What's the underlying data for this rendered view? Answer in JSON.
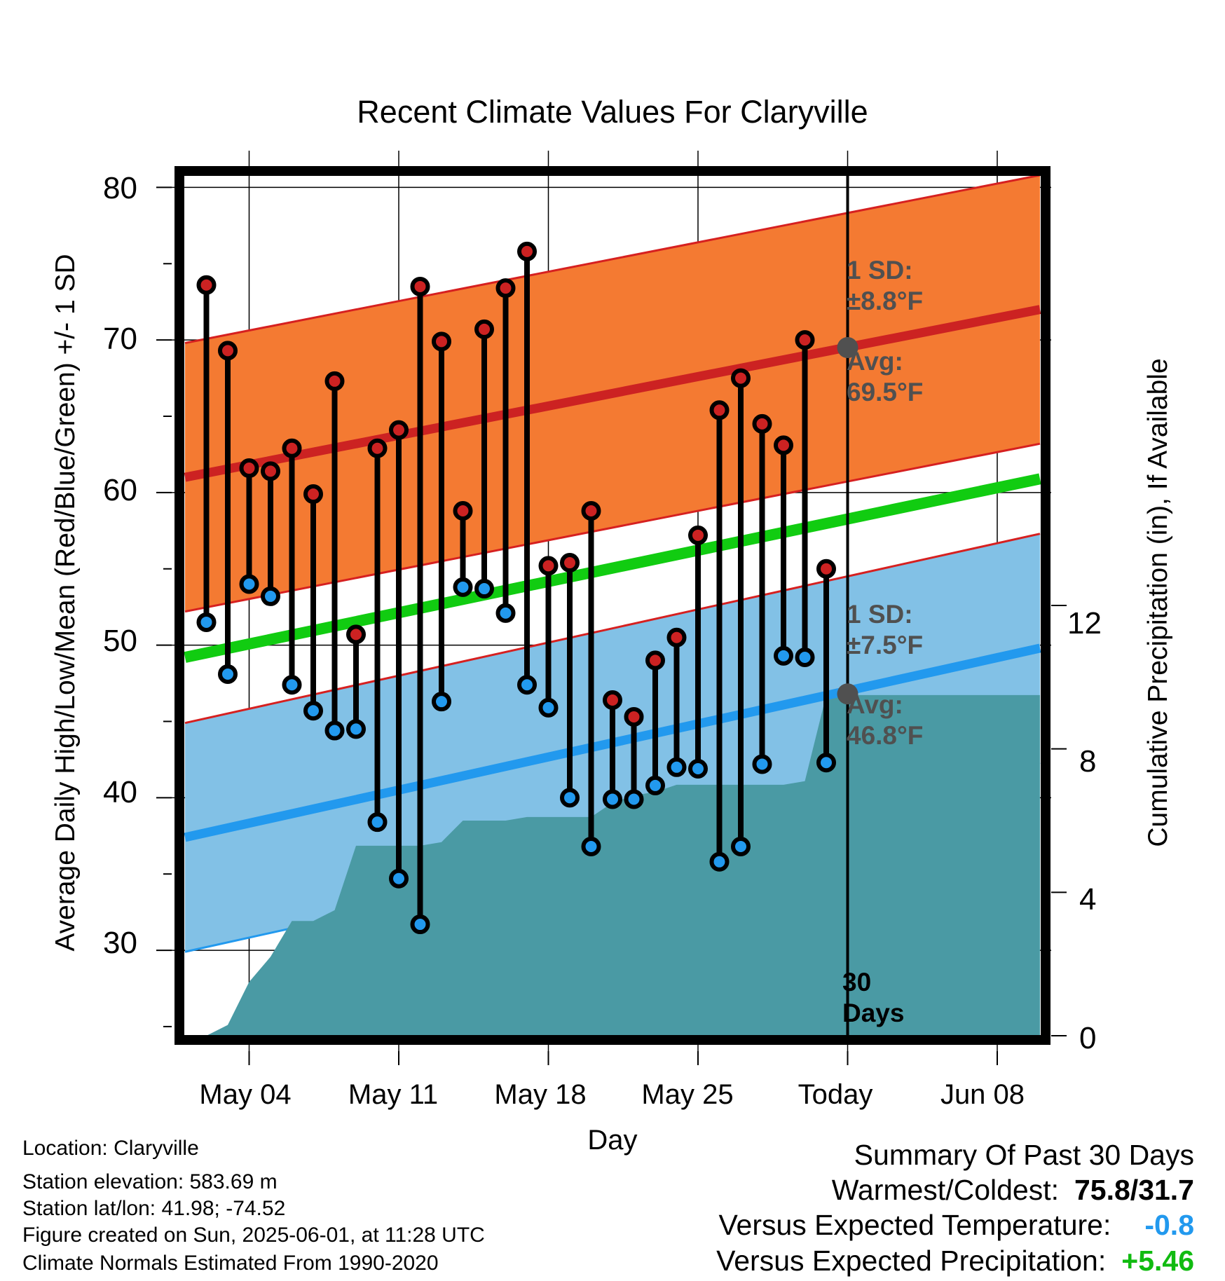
{
  "chart_data": {
    "type": "line",
    "title": "Recent Climate Values For Claryville",
    "xlabel": "Day",
    "ylabel": "Average Daily High/Low/Mean (Red/Blue/Green) +/- 1 SD",
    "y2label": "Cumulative Precipitation (in), If Available",
    "ylim": [
      24.4,
      80.8
    ],
    "y2lim": [
      0,
      24
    ],
    "x_tick_labels": [
      "May 04",
      "May 11",
      "May 18",
      "May 25",
      "Today",
      "Jun 08"
    ],
    "y_tick_labels": [
      "80",
      "70",
      "60",
      "50",
      "40",
      "30"
    ],
    "y2_tick_labels": [
      "12",
      "8",
      "4",
      "0"
    ],
    "x_start_date": "2025-05-01",
    "x_end_date": "2025-06-10",
    "today_date": "2025-06-01",
    "dates": [
      "2025-05-02",
      "2025-05-03",
      "2025-05-04",
      "2025-05-05",
      "2025-05-06",
      "2025-05-07",
      "2025-05-08",
      "2025-05-09",
      "2025-05-10",
      "2025-05-11",
      "2025-05-12",
      "2025-05-13",
      "2025-05-14",
      "2025-05-15",
      "2025-05-16",
      "2025-05-17",
      "2025-05-18",
      "2025-05-19",
      "2025-05-20",
      "2025-05-21",
      "2025-05-22",
      "2025-05-23",
      "2025-05-24",
      "2025-05-25",
      "2025-05-26",
      "2025-05-27",
      "2025-05-28",
      "2025-05-29",
      "2025-05-30",
      "2025-05-31"
    ],
    "series": [
      {
        "name": "High",
        "color": "#cc2222",
        "values": [
          73.6,
          69.3,
          61.6,
          61.4,
          62.9,
          59.9,
          67.3,
          50.7,
          62.9,
          64.1,
          73.5,
          69.9,
          58.8,
          70.7,
          73.4,
          75.8,
          55.2,
          55.4,
          58.8,
          46.4,
          45.3,
          49.0,
          50.5,
          57.2,
          65.4,
          67.5,
          64.5,
          63.1,
          70.0,
          55.0
        ]
      },
      {
        "name": "Low",
        "color": "#2299ee",
        "values": [
          51.5,
          48.1,
          54.0,
          53.2,
          47.4,
          45.7,
          44.4,
          44.5,
          38.4,
          34.7,
          31.7,
          46.3,
          53.8,
          53.7,
          52.1,
          47.4,
          45.9,
          40.0,
          36.8,
          39.9,
          39.9,
          40.8,
          42.0,
          41.9,
          35.8,
          36.8,
          42.2,
          49.3,
          49.2,
          42.3
        ]
      }
    ],
    "normal_high_start": 61.0,
    "normal_high_end": 72.0,
    "normal_high_sd": 8.8,
    "normal_low_start": 37.4,
    "normal_low_end": 49.8,
    "normal_low_sd": 7.5,
    "normal_mean_start": 49.2,
    "normal_mean_end": 60.9,
    "precipitation_cumulative": [
      0,
      0.3,
      1.5,
      2.2,
      3.2,
      3.2,
      3.5,
      5.3,
      5.3,
      5.3,
      5.3,
      5.4,
      6.0,
      6.0,
      6.0,
      6.1,
      6.1,
      6.1,
      6.1,
      6.5,
      6.7,
      6.8,
      7.0,
      7.0,
      7.0,
      7.0,
      7.0,
      7.0,
      7.1,
      9.5
    ],
    "colors": {
      "high_band": "#f47a32",
      "low_band": "#82c1e6",
      "mean_line": "#11cc11",
      "precip_fill": "#4a9aa4",
      "annotation_text": "#505050"
    },
    "annotations": {
      "high_sd": {
        "line1": "1 SD:",
        "line2": "±8.8°F"
      },
      "high_avg": {
        "line1": "Avg:",
        "line2": "69.5°F",
        "value": 69.5
      },
      "low_sd": {
        "line1": "1 SD:",
        "line2": "±7.5°F"
      },
      "low_avg": {
        "line1": "Avg:",
        "line2": "46.8°F",
        "value": 46.8
      },
      "days": {
        "line1": "30",
        "line2": "Days"
      }
    }
  },
  "info": {
    "location": "Location: Claryville",
    "elevation": "Station elevation: 583.69 m",
    "latlon": "Station lat/lon: 41.98; -74.52",
    "created": "Figure created on Sun, 2025-06-01, at 11:28 UTC",
    "normals": "Climate Normals Estimated From 1990-2020"
  },
  "summary": {
    "title": "Summary Of Past 30 Days",
    "warmest_label": "Warmest/Coldest:",
    "warmest_value": "75.8/31.7",
    "temp_label": "Versus Expected Temperature:",
    "temp_value": "-0.8",
    "temp_color": "#2299ee",
    "precip_label": "Versus Expected Precipitation:",
    "precip_value": "+5.46",
    "precip_color": "#11bb11"
  }
}
